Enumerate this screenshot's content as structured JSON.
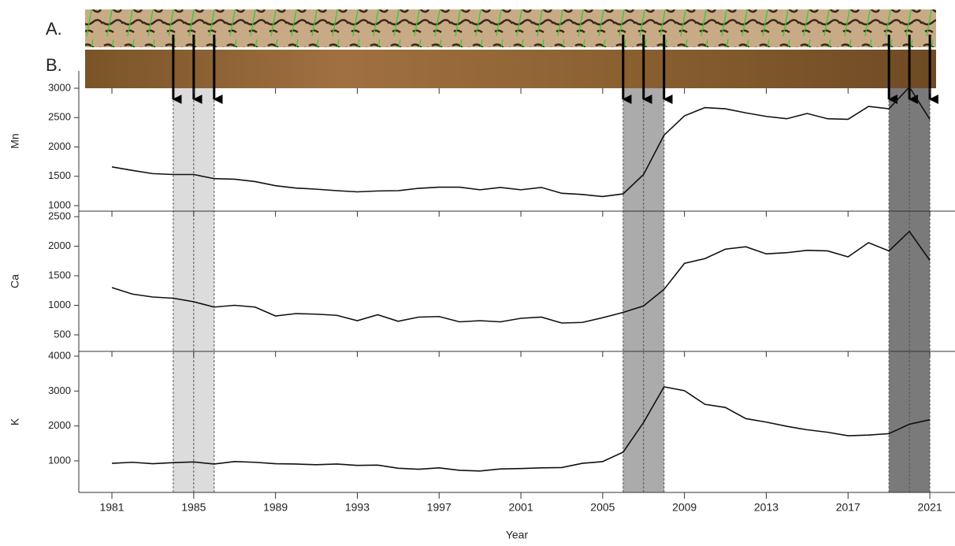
{
  "image_labels": [
    "A.",
    "B."
  ],
  "bands": [
    {
      "years": [
        1984,
        1985,
        1986
      ],
      "color": "#dcdcdc"
    },
    {
      "years": [
        2006,
        2007,
        2008
      ],
      "color": "#ababab"
    },
    {
      "years": [
        2019,
        2020,
        2021
      ],
      "color": "#7a7a7a"
    }
  ],
  "chart_data": [
    {
      "type": "line",
      "ylabel": "Mn",
      "color": "#111",
      "xlim": [
        1979.38,
        2022.23
      ],
      "ylim": [
        906,
        3295
      ],
      "yticks": [
        1000,
        1500,
        2000,
        2500,
        3000
      ],
      "xticks": [
        1981,
        1985,
        1989,
        1993,
        1997,
        2001,
        2005,
        2009,
        2013,
        2017,
        2021
      ],
      "x": [
        1981,
        1982,
        1983,
        1984,
        1985,
        1986,
        1987,
        1988,
        1989,
        1990,
        1991,
        1992,
        1993,
        1994,
        1995,
        1996,
        1997,
        1998,
        1999,
        2000,
        2001,
        2002,
        2003,
        2004,
        2005,
        2006,
        2007,
        2008,
        2009,
        2010,
        2011,
        2012,
        2013,
        2014,
        2015,
        2016,
        2017,
        2018,
        2019,
        2020,
        2021
      ],
      "values": [
        1660,
        1600,
        1545,
        1530,
        1530,
        1460,
        1450,
        1410,
        1340,
        1300,
        1280,
        1255,
        1235,
        1250,
        1255,
        1295,
        1315,
        1315,
        1270,
        1310,
        1270,
        1310,
        1210,
        1190,
        1155,
        1200,
        1530,
        2200,
        2530,
        2670,
        2650,
        2580,
        2520,
        2480,
        2570,
        2480,
        2470,
        2690,
        2650,
        3020,
        2470
      ]
    },
    {
      "type": "line",
      "ylabel": "Ca",
      "color": "#111",
      "xlim": [
        1979.38,
        2022.23
      ],
      "ylim": [
        220,
        2593
      ],
      "yticks": [
        500,
        1000,
        1500,
        2000,
        2500
      ],
      "xticks": [
        1981,
        1985,
        1989,
        1993,
        1997,
        2001,
        2005,
        2009,
        2013,
        2017,
        2021
      ],
      "x": [
        1981,
        1982,
        1983,
        1984,
        1985,
        1986,
        1987,
        1988,
        1989,
        1990,
        1991,
        1992,
        1993,
        1994,
        1995,
        1996,
        1997,
        1998,
        1999,
        2000,
        2001,
        2002,
        2003,
        2004,
        2005,
        2006,
        2007,
        2008,
        2009,
        2010,
        2011,
        2012,
        2013,
        2014,
        2015,
        2016,
        2017,
        2018,
        2019,
        2020,
        2021
      ],
      "values": [
        1300,
        1190,
        1140,
        1120,
        1060,
        970,
        1000,
        970,
        820,
        860,
        850,
        830,
        740,
        840,
        730,
        800,
        810,
        720,
        740,
        720,
        780,
        800,
        700,
        710,
        790,
        880,
        990,
        1270,
        1710,
        1790,
        1950,
        1990,
        1870,
        1890,
        1930,
        1920,
        1820,
        2060,
        1920,
        2250,
        1760
      ]
    },
    {
      "type": "line",
      "ylabel": "K",
      "xlabel": "Year",
      "color": "#111",
      "xlim": [
        1979.38,
        2022.23
      ],
      "ylim": [
        97,
        4135
      ],
      "yticks": [
        1000,
        2000,
        3000,
        4000
      ],
      "xticks": [
        1981,
        1985,
        1989,
        1993,
        1997,
        2001,
        2005,
        2009,
        2013,
        2017,
        2021
      ],
      "x": [
        1981,
        1982,
        1983,
        1984,
        1985,
        1986,
        1987,
        1988,
        1989,
        1990,
        1991,
        1992,
        1993,
        1994,
        1995,
        1996,
        1997,
        1998,
        1999,
        2000,
        2001,
        2002,
        2003,
        2004,
        2005,
        2006,
        2007,
        2008,
        2009,
        2010,
        2011,
        2012,
        2013,
        2014,
        2015,
        2016,
        2017,
        2018,
        2019,
        2020,
        2021
      ],
      "values": [
        930,
        960,
        920,
        950,
        970,
        910,
        980,
        960,
        920,
        910,
        890,
        910,
        870,
        880,
        790,
        760,
        800,
        730,
        710,
        770,
        780,
        800,
        810,
        930,
        980,
        1250,
        2100,
        3120,
        3010,
        2620,
        2530,
        2210,
        2110,
        1990,
        1890,
        1820,
        1720,
        1740,
        1780,
        2050,
        2180
      ]
    }
  ]
}
